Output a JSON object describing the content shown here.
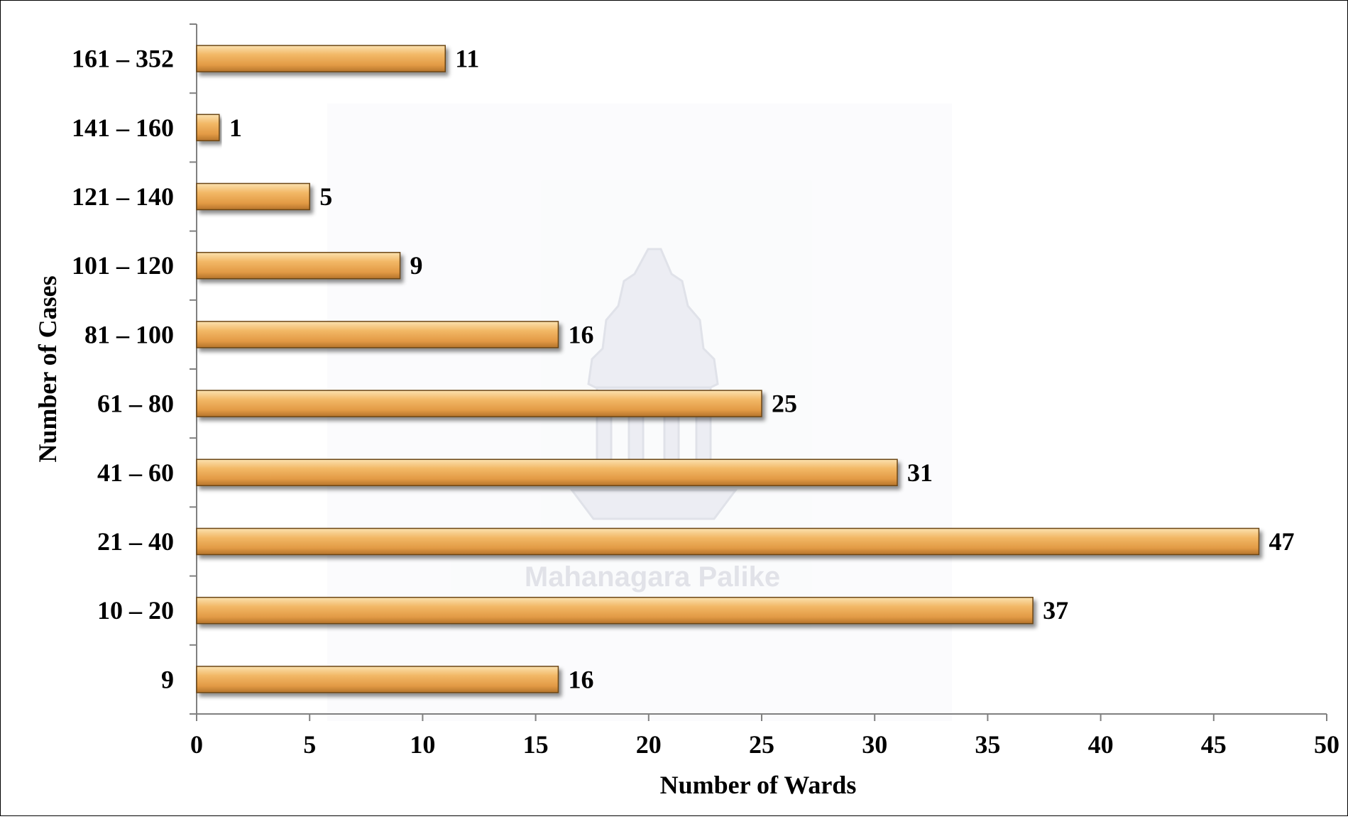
{
  "watermark": {
    "text": "Mahanagara Palike"
  },
  "chart_data": {
    "type": "bar",
    "orientation": "horizontal",
    "categories": [
      "9",
      "10 – 20",
      "21 – 40",
      "41 – 60",
      "61 – 80",
      "81 – 100",
      "101 – 120",
      "121 – 140",
      "141 – 160",
      "161 – 352"
    ],
    "values": [
      16,
      37,
      47,
      31,
      25,
      16,
      9,
      5,
      1,
      11
    ],
    "xlabel": "Number of Wards",
    "ylabel": "Number of Cases",
    "xlim": [
      0,
      50
    ],
    "xticks": [
      0,
      5,
      10,
      15,
      20,
      25,
      30,
      35,
      40,
      45,
      50
    ],
    "grid": false,
    "legend": "none",
    "bar_color": "#e9a54f",
    "bar_highlight": "#fbd79a",
    "bar_edge": "#6b4512"
  }
}
